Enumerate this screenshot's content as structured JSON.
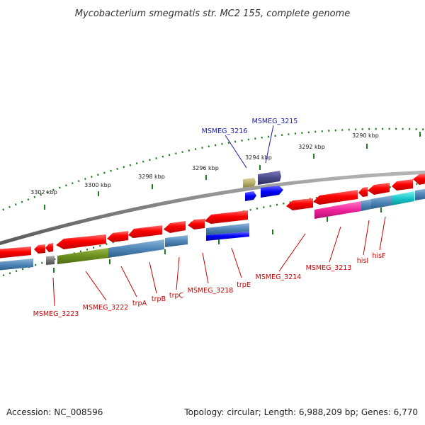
{
  "title": "Mycobacterium smegmatis str. MC2 155, complete genome",
  "footer": {
    "accession": "Accession: NC_008596",
    "summary": "Topology: circular; Length: 6,988,209 bp; Genes: 6,770"
  },
  "colors": {
    "forward_gene": "#ff0000",
    "reverse_gene": "#1a1aff",
    "feature_blue": "#4f86b8",
    "feature_olive": "#6b8f1e",
    "feature_pink": "#f0229a",
    "feature_cyan": "#19c8cc",
    "feature_grey": "#777777",
    "feature_khaki": "#b8b26a",
    "feature_slate": "#4a4a8a",
    "backbone": "#7f7f7f",
    "tick": "#1e7a1e",
    "label_red": "#cc0000",
    "label_blue": "#1a1aa8"
  },
  "ruler_labels": [
    "3302 kbp",
    "3300 kbp",
    "3298 kbp",
    "3296 kbp",
    "3294 kbp",
    "3292 kbp",
    "3290 kbp"
  ],
  "genes_reverse_strand_labels": [
    "MSMEG_3223",
    "MSMEG_3222",
    "trpA",
    "trpB",
    "trpC",
    "MSMEG_3218",
    "trpE",
    "MSMEG_3214",
    "MSMEG_3213",
    "hisI",
    "hisF"
  ],
  "genes_forward_strand_labels": [
    "MSMEG_3216",
    "MSMEG_3215"
  ]
}
